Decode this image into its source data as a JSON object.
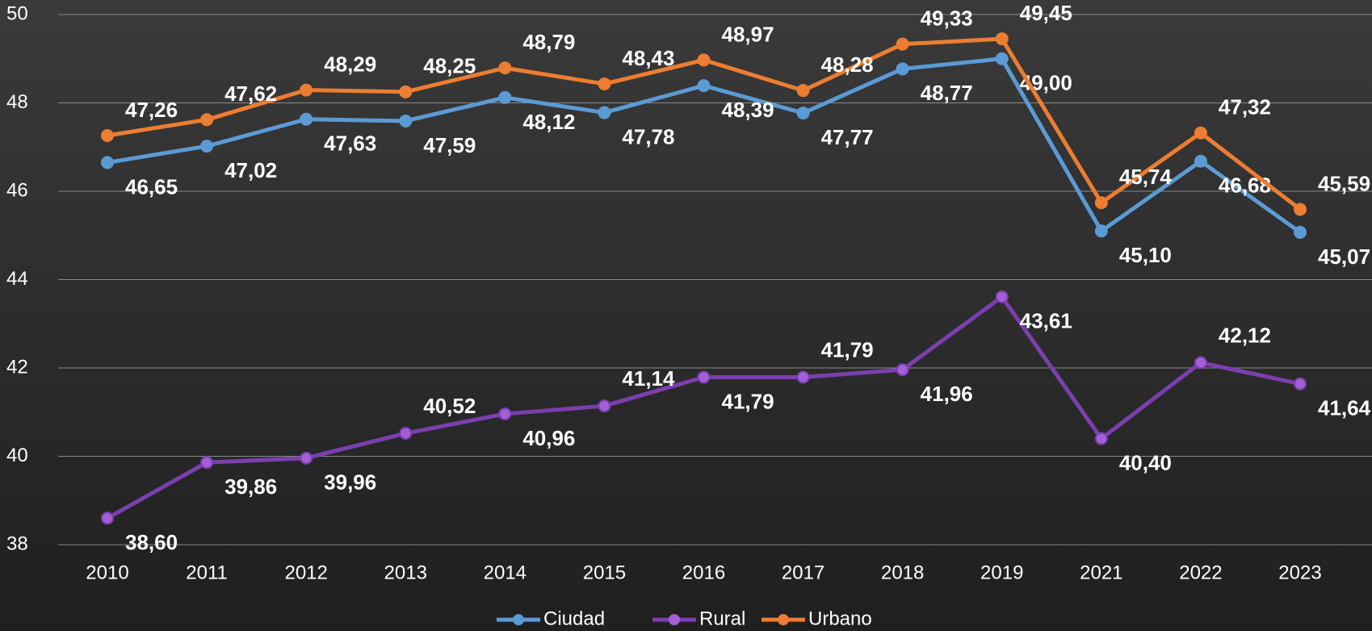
{
  "chart_data": {
    "type": "line",
    "categories": [
      "2010",
      "2011",
      "2012",
      "2013",
      "2014",
      "2015",
      "2016",
      "2017",
      "2018",
      "2019",
      "2021",
      "2022",
      "2023"
    ],
    "series": [
      {
        "name": "Ciudad",
        "color": "#5b9bd5",
        "values": [
          46.65,
          47.02,
          47.63,
          47.59,
          48.12,
          47.78,
          48.39,
          47.77,
          48.77,
          49.0,
          45.1,
          46.68,
          45.07
        ],
        "value_labels": [
          "46,65",
          "47,02",
          "47,63",
          "47,59",
          "48,12",
          "47,78",
          "48,39",
          "47,77",
          "48,77",
          "49,00",
          "45,10",
          "46,68",
          "45,07"
        ]
      },
      {
        "name": "Rural",
        "color": "#7b3fb0",
        "values": [
          38.6,
          39.86,
          39.96,
          40.52,
          40.96,
          41.14,
          41.79,
          41.79,
          41.96,
          43.61,
          40.4,
          42.12,
          41.64
        ],
        "value_labels": [
          "38,60",
          "39,86",
          "39,96",
          "40,52",
          "40,96",
          "41,14",
          "41,79",
          "41,79",
          "41,96",
          "43,61",
          "40,40",
          "42,12",
          "41,64"
        ]
      },
      {
        "name": "Urbano",
        "color": "#ed7d31",
        "values": [
          47.26,
          47.62,
          48.29,
          48.25,
          48.79,
          48.43,
          48.97,
          48.28,
          49.33,
          49.45,
          45.74,
          47.32,
          45.59
        ],
        "value_labels": [
          "47,26",
          "47,62",
          "48,29",
          "48,25",
          "48,79",
          "48,43",
          "48,97",
          "48,28",
          "49,33",
          "49,45",
          "45,74",
          "47,32",
          "45,59"
        ]
      }
    ],
    "ylim": [
      38,
      50
    ],
    "yticks": [
      38,
      40,
      42,
      44,
      46,
      48,
      50
    ],
    "grid": true,
    "legend": "bottom"
  }
}
